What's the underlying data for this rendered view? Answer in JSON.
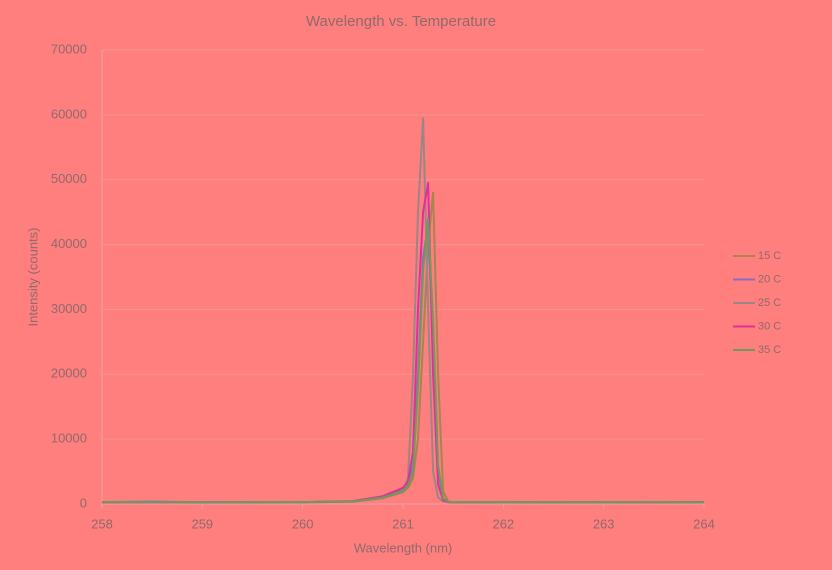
{
  "chart_data": {
    "type": "line",
    "title": "Wavelength vs. Temperature",
    "x_label": "Wavelength (nm)",
    "y_label": "Intensity (counts)",
    "x": [
      258,
      258.5,
      259,
      259.5,
      260,
      260.5,
      260.8,
      261,
      261.05,
      261.1,
      261.15,
      261.2,
      261.25,
      261.3,
      261.35,
      261.4,
      261.45,
      261.5,
      262,
      262.5,
      263,
      263.5,
      264
    ],
    "series": [
      {
        "name": "15 C",
        "color": "#a8844e",
        "values": [
          250,
          300,
          300,
          250,
          250,
          350,
          900,
          1800,
          2500,
          4000,
          10000,
          25000,
          40000,
          48000,
          20000,
          2000,
          400,
          300,
          250,
          300,
          250,
          300,
          250
        ]
      },
      {
        "name": "20 C",
        "color": "#8a6cc4",
        "values": [
          300,
          250,
          300,
          250,
          300,
          400,
          1100,
          2200,
          3000,
          6000,
          20000,
          38000,
          43000,
          25000,
          5000,
          800,
          300,
          250,
          300,
          250,
          300,
          250,
          300
        ]
      },
      {
        "name": "25 C",
        "color": "#9c8585",
        "values": [
          300,
          400,
          250,
          300,
          250,
          400,
          1000,
          2000,
          4000,
          20000,
          45000,
          59500,
          30000,
          5000,
          1000,
          400,
          300,
          250,
          300,
          250,
          300,
          250,
          300
        ]
      },
      {
        "name": "30 C",
        "color": "#e0309a",
        "values": [
          250,
          300,
          250,
          300,
          300,
          450,
          1200,
          2500,
          3500,
          8000,
          30000,
          45000,
          49500,
          20000,
          3000,
          600,
          300,
          250,
          300,
          250,
          300,
          250,
          300
        ]
      },
      {
        "name": "35 C",
        "color": "#6e9a5c",
        "values": [
          300,
          300,
          250,
          300,
          300,
          400,
          1000,
          2000,
          2800,
          5000,
          18000,
          36000,
          44000,
          28000,
          6000,
          900,
          350,
          300,
          300,
          250,
          300,
          300,
          250
        ]
      }
    ],
    "xlim": [
      258,
      264
    ],
    "xticks": [
      258,
      259,
      260,
      261,
      262,
      263,
      264
    ],
    "ylim": [
      0,
      70000
    ],
    "yticks": [
      0,
      10000,
      20000,
      30000,
      40000,
      50000,
      60000,
      70000
    ],
    "grid": true,
    "legend": "right"
  }
}
